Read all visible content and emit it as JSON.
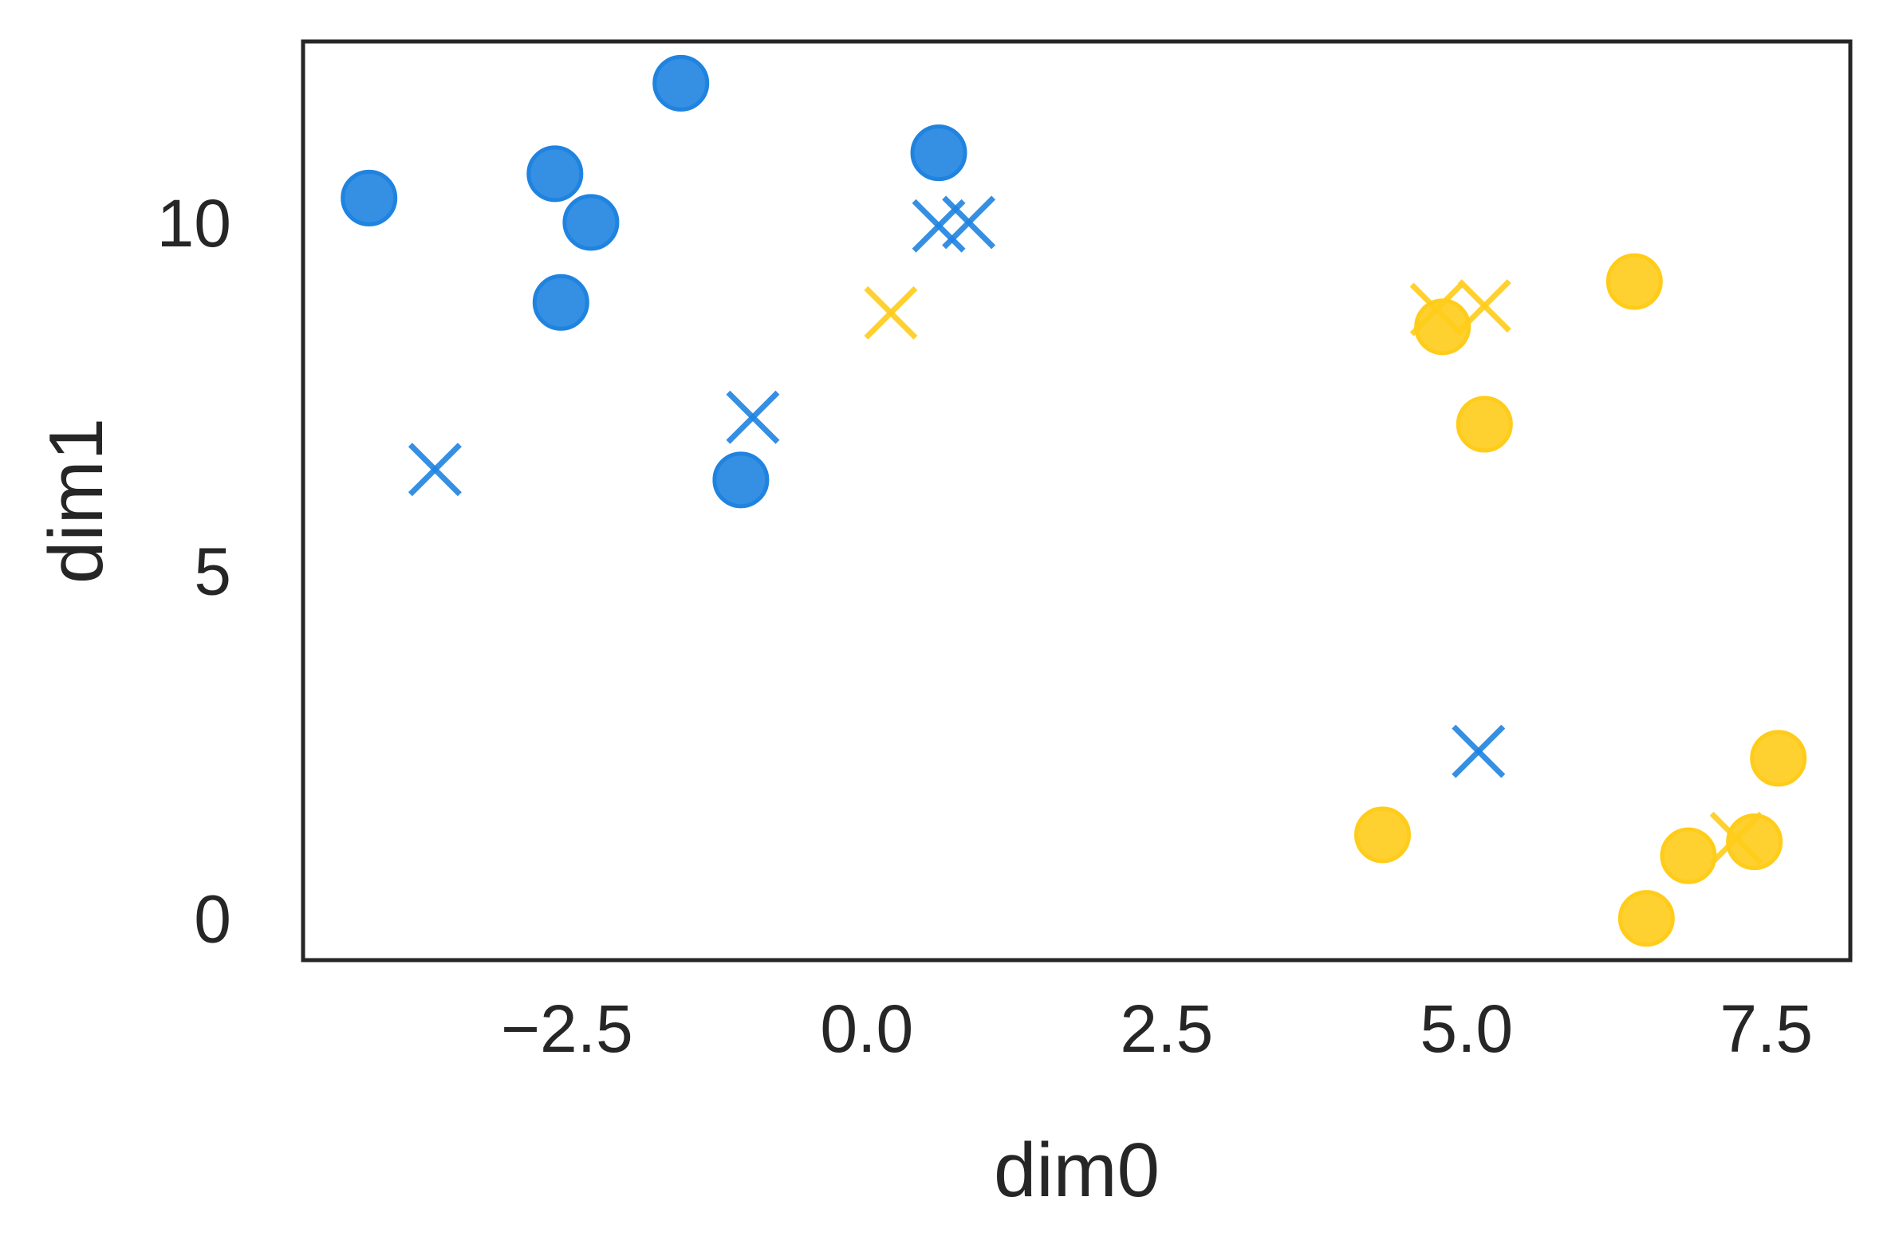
{
  "chart_data": {
    "type": "scatter",
    "title": "",
    "xlabel": "dim0",
    "ylabel": "dim1",
    "xlim": [
      -4.7,
      8.2
    ],
    "ylim": [
      -0.6,
      12.6
    ],
    "xticks": [
      -2.5,
      0.0,
      2.5,
      5.0,
      7.5
    ],
    "xtick_labels": [
      "−2.5",
      "0.0",
      "2.5",
      "5.0",
      "7.5"
    ],
    "yticks": [
      0,
      5,
      10
    ],
    "ytick_labels": [
      "0",
      "5",
      "10"
    ],
    "grid": false,
    "legend": "none",
    "colors": {
      "blue": "#1f83e0",
      "yellow": "#ffcc1a",
      "axis": "#262626"
    },
    "series": [
      {
        "color": "blue",
        "marker": "circle",
        "points": [
          [
            -4.15,
            10.35
          ],
          [
            -2.6,
            10.7
          ],
          [
            -2.3,
            10.0
          ],
          [
            -2.55,
            8.85
          ],
          [
            -1.55,
            12.0
          ],
          [
            -1.05,
            6.3
          ],
          [
            0.6,
            11.0
          ]
        ]
      },
      {
        "color": "blue",
        "marker": "x",
        "points": [
          [
            -3.6,
            6.45
          ],
          [
            -0.95,
            7.2
          ],
          [
            0.6,
            9.95
          ],
          [
            0.85,
            10.0
          ],
          [
            5.1,
            2.4
          ]
        ]
      },
      {
        "color": "yellow",
        "marker": "circle",
        "points": [
          [
            4.3,
            1.2
          ],
          [
            4.8,
            8.5
          ],
          [
            5.15,
            7.1
          ],
          [
            6.4,
            9.15
          ],
          [
            6.5,
            0.0
          ],
          [
            6.85,
            0.9
          ],
          [
            7.4,
            1.1
          ],
          [
            7.6,
            2.3
          ]
        ]
      },
      {
        "color": "yellow",
        "marker": "x",
        "points": [
          [
            0.2,
            8.7
          ],
          [
            4.75,
            8.75
          ],
          [
            5.15,
            8.8
          ],
          [
            7.25,
            1.15
          ]
        ]
      }
    ]
  }
}
